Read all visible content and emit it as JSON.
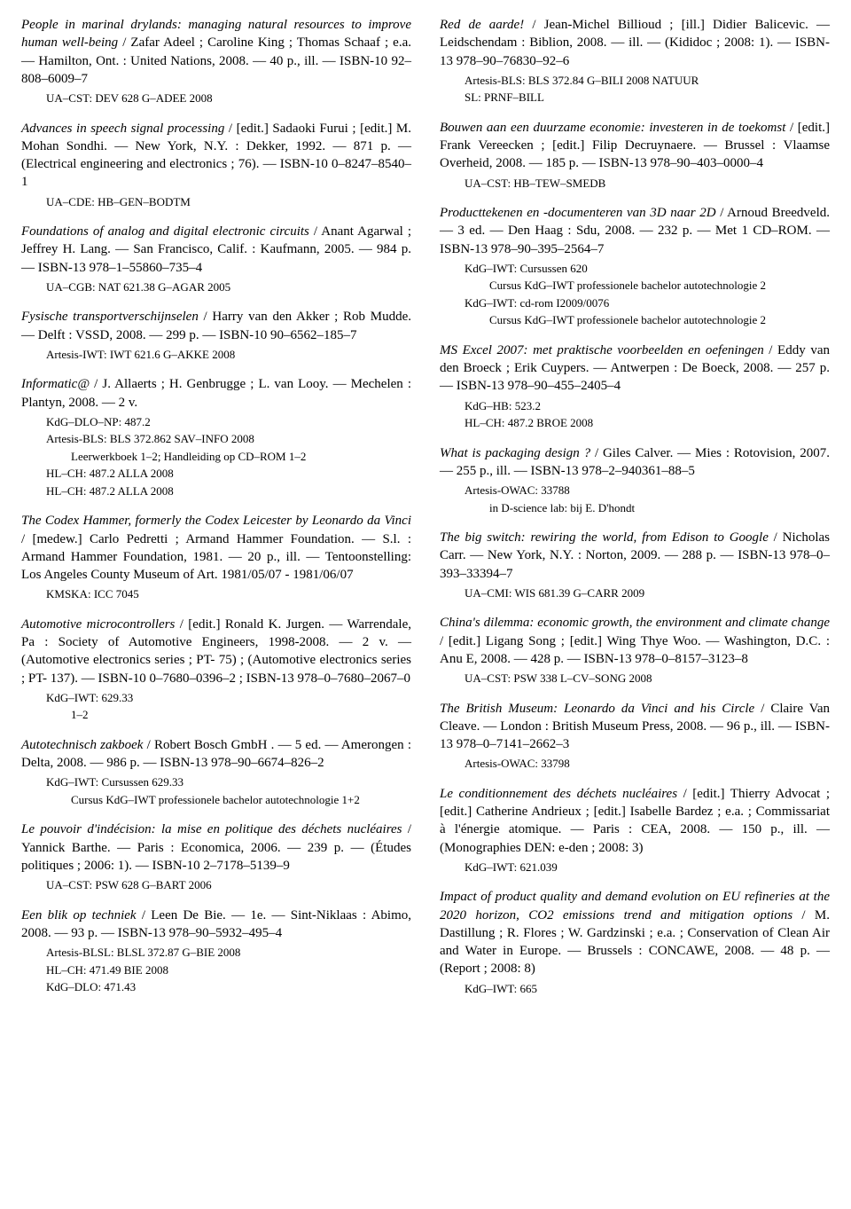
{
  "left": [
    {
      "title": "People in marinal drylands: managing natural resources to improve human well-being",
      "rest": " / Zafar Adeel ; Caroline King ; Thomas Schaaf ; e.a. — Hamilton, Ont. : United Nations, 2008. — 40 p., ill. — ISBN-10 92–808–6009–7",
      "holdings": [
        {
          "t": "UA–CST: DEV 628 G–ADEE 2008",
          "l": 1
        }
      ]
    },
    {
      "title": "Advances in speech signal processing",
      "rest": " / [edit.] Sadaoki Furui ; [edit.] M. Mohan Sondhi. — New York, N.Y. : Dekker, 1992. — 871 p. — (Electrical engineering and electronics ; 76). — ISBN-10 0–8247–8540–1",
      "holdings": [
        {
          "t": "UA–CDE: HB–GEN–BODTM",
          "l": 1
        }
      ]
    },
    {
      "title": "Foundations of analog and digital electronic circuits",
      "rest": " / Anant Agarwal ; Jeffrey H. Lang. — San Francisco, Calif. : Kaufmann, 2005. — 984 p. — ISBN-13 978–1–55860–735–4",
      "holdings": [
        {
          "t": "UA–CGB: NAT 621.38 G–AGAR 2005",
          "l": 1
        }
      ]
    },
    {
      "title": "Fysische transportverschijnselen",
      "rest": " / Harry van den Akker ; Rob Mudde. — Delft : VSSD, 2008. — 299 p. — ISBN-10 90–6562–185–7",
      "holdings": [
        {
          "t": "Artesis-IWT: IWT 621.6 G–AKKE 2008",
          "l": 1
        }
      ]
    },
    {
      "title": "Informatic@",
      "rest": " / J. Allaerts ; H. Genbrugge ; L. van Looy. — Mechelen : Plantyn, 2008. — 2 v.",
      "holdings": [
        {
          "t": "KdG–DLO–NP: 487.2",
          "l": 1
        },
        {
          "t": "Artesis-BLS: BLS 372.862 SAV–INFO 2008",
          "l": 1
        },
        {
          "t": "Leerwerkboek 1–2; Handleiding op CD–ROM 1–2",
          "l": 2
        },
        {
          "t": "HL–CH: 487.2 ALLA 2008",
          "l": 1
        },
        {
          "t": "HL–CH: 487.2 ALLA 2008",
          "l": 1
        }
      ]
    },
    {
      "title": "The Codex Hammer, formerly the Codex Leicester by Leonardo da Vinci",
      "rest": " / [medew.] Carlo Pedretti ; Armand Hammer Foundation. — S.l. : Armand Hammer Foundation, 1981. — 20 p., ill. — Tentoonstelling: Los Angeles County Museum of Art. 1981/05/07 - 1981/06/07",
      "holdings": [
        {
          "t": "KMSKA: ICC 7045",
          "l": 1
        }
      ]
    },
    {
      "title": "Automotive microcontrollers",
      "rest": " / [edit.] Ronald K. Jurgen. — Warrendale, Pa : Society of Automotive Engineers, 1998-2008. — 2 v. — (Automotive electronics series ; PT- 75) ; (Automotive electronics series ; PT- 137). — ISBN-10 0–7680–0396–2 ; ISBN-13 978–0–7680–2067–0",
      "holdings": [
        {
          "t": "KdG–IWT: 629.33",
          "l": 1
        },
        {
          "t": "1–2",
          "l": 2
        }
      ]
    },
    {
      "title": "Autotechnisch zakboek",
      "rest": " / Robert Bosch GmbH . — 5 ed. — Amerongen : Delta, 2008. — 986 p. — ISBN-13 978–90–6674–826–2",
      "holdings": [
        {
          "t": "KdG–IWT: Cursussen 629.33",
          "l": 1
        },
        {
          "t": "Cursus KdG–IWT professionele bachelor autotechnologie 1+2",
          "l": 2
        }
      ]
    },
    {
      "title": "Le pouvoir d'indécision: la mise en politique des déchets nucléaires",
      "rest": " / Yannick Barthe. — Paris : Economica, 2006. — 239 p. — (Études politiques ; 2006: 1). — ISBN-10 2–7178–5139–9",
      "holdings": [
        {
          "t": "UA–CST: PSW 628 G–BART 2006",
          "l": 1
        }
      ]
    },
    {
      "title": "Een blik op techniek",
      "rest": " / Leen De Bie. — 1e. — Sint-Niklaas : Abimo, 2008. — 93 p. — ISBN-13 978–90–5932–495–4",
      "holdings": [
        {
          "t": "Artesis-BLSL: BLSL 372.87 G–BIE 2008",
          "l": 1
        },
        {
          "t": "HL–CH: 471.49 BIE 2008",
          "l": 1
        },
        {
          "t": "KdG–DLO: 471.43",
          "l": 1
        }
      ]
    }
  ],
  "right": [
    {
      "title": "Red de aarde!",
      "rest": " / Jean-Michel Billioud ; [ill.] Didier Balicevic. — Leidschendam : Biblion, 2008. — ill. — (Kididoc ; 2008: 1). — ISBN-13 978–90–76830–92–6",
      "holdings": [
        {
          "t": "Artesis-BLS: BLS 372.84 G–BILI 2008 NATUUR",
          "l": 1
        },
        {
          "t": "SL: PRNF–BILL",
          "l": 1
        }
      ]
    },
    {
      "title": "Bouwen aan een duurzame economie: investeren in de toekomst",
      "rest": " / [edit.] Frank Vereecken ; [edit.] Filip Decruynaere. — Brussel : Vlaamse Overheid, 2008. — 185 p. — ISBN-13 978–90–403–0000–4",
      "holdings": [
        {
          "t": "UA–CST: HB–TEW–SMEDB",
          "l": 1
        }
      ]
    },
    {
      "title": "Producttekenen en -documenteren van 3D naar 2D",
      "rest": " / Arnoud Breedveld. — 3 ed. — Den Haag : Sdu, 2008. — 232 p. — Met 1 CD–ROM. — ISBN-13 978–90–395–2564–7",
      "holdings": [
        {
          "t": "KdG–IWT: Cursussen 620",
          "l": 1
        },
        {
          "t": "Cursus KdG–IWT professionele bachelor autotechnologie 2",
          "l": 2
        },
        {
          "t": "KdG–IWT: cd-rom I2009/0076",
          "l": 1
        },
        {
          "t": "Cursus KdG–IWT professionele bachelor autotechnologie 2",
          "l": 2
        }
      ]
    },
    {
      "title": "MS Excel 2007: met praktische voorbeelden en oefeningen",
      "rest": " / Eddy van den Broeck ; Erik Cuypers. — Antwerpen : De Boeck, 2008. — 257 p. — ISBN-13 978–90–455–2405–4",
      "holdings": [
        {
          "t": "KdG–HB: 523.2",
          "l": 1
        },
        {
          "t": "HL–CH: 487.2 BROE 2008",
          "l": 1
        }
      ]
    },
    {
      "title": "What is packaging design ?",
      "rest": " / Giles Calver. — Mies : Rotovision, 2007. — 255 p., ill. — ISBN-13 978–2–940361–88–5",
      "holdings": [
        {
          "t": "Artesis-OWAC: 33788",
          "l": 1
        },
        {
          "t": "in D-science lab: bij E. D'hondt",
          "l": 2
        }
      ]
    },
    {
      "title": "The big switch: rewiring the world, from Edison to Google",
      "rest": " / Nicholas Carr. — New York, N.Y. : Norton, 2009. — 288 p. — ISBN-13 978–0–393–33394–7",
      "holdings": [
        {
          "t": "UA–CMI: WIS 681.39 G–CARR 2009",
          "l": 1
        }
      ]
    },
    {
      "title": "China's dilemma: economic growth, the environment and climate change",
      "rest": " / [edit.] Ligang Song ; [edit.] Wing Thye Woo. — Washington, D.C. : Anu E, 2008. — 428 p. — ISBN-13 978–0–8157–3123–8",
      "holdings": [
        {
          "t": "UA–CST: PSW 338 L–CV–SONG 2008",
          "l": 1
        }
      ]
    },
    {
      "title": "The British Museum: Leonardo da Vinci and his Circle",
      "rest": " / Claire Van Cleave. — London : British Museum Press, 2008. — 96 p., ill. — ISBN-13 978–0–7141–2662–3",
      "holdings": [
        {
          "t": "Artesis-OWAC: 33798",
          "l": 1
        }
      ]
    },
    {
      "title": "Le conditionnement des déchets nucléaires",
      "rest": " / [edit.] Thierry Advocat ; [edit.] Catherine Andrieux ; [edit.] Isabelle Bardez ; e.a. ; Commissariat à l'énergie atomique. — Paris : CEA, 2008. — 150 p., ill. — (Monographies DEN: e-den ; 2008: 3)",
      "holdings": [
        {
          "t": "KdG–IWT: 621.039",
          "l": 1
        }
      ]
    },
    {
      "title": "Impact of product quality and demand evolution on EU refineries at the 2020 horizon, CO2 emissions trend and mitigation options",
      "rest": " / M. Dastillung ; R. Flores ; W. Gardzinski ; e.a. ; Conservation of Clean Air and Water in Europe. — Brussels : CONCAWE, 2008. — 48 p. — (Report ; 2008: 8)",
      "holdings": [
        {
          "t": "KdG–IWT: 665",
          "l": 1
        }
      ]
    }
  ]
}
